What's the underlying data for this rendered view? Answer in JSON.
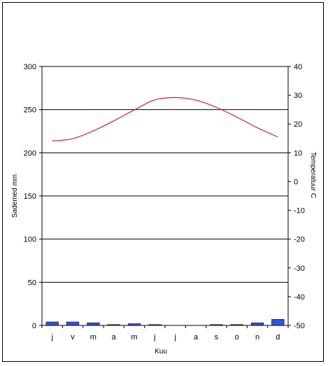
{
  "chart_data": {
    "type": "bar+line",
    "title": "",
    "xlabel": "Kuu",
    "ylabel_left": "Sademed mm",
    "ylabel_right": "Temperatuur C",
    "categories": [
      "j",
      "v",
      "m",
      "a",
      "m",
      "j",
      "j",
      "a",
      "s",
      "o",
      "n",
      "d"
    ],
    "ylim_left": [
      0,
      300
    ],
    "ylim_right": [
      -50,
      40
    ],
    "yticks_left": [
      "0",
      "50",
      "100",
      "150",
      "200",
      "250",
      "300"
    ],
    "yticks_right": [
      "-50",
      "-40",
      "-30",
      "-20",
      "-10",
      "0",
      "10",
      "20",
      "30",
      "40"
    ],
    "grid": true,
    "series": [
      {
        "kind": "bar",
        "axis": "left",
        "color": "#3355dd",
        "values": [
          4,
          4,
          3,
          1,
          2,
          1,
          0,
          0,
          1,
          1,
          3,
          7
        ]
      },
      {
        "kind": "line",
        "axis": "right",
        "color": "#cc2222",
        "values": [
          14.1,
          14.9,
          17.6,
          21.1,
          24.9,
          28.4,
          29.2,
          28.3,
          25.8,
          22.4,
          18.7,
          15.5
        ]
      }
    ]
  }
}
